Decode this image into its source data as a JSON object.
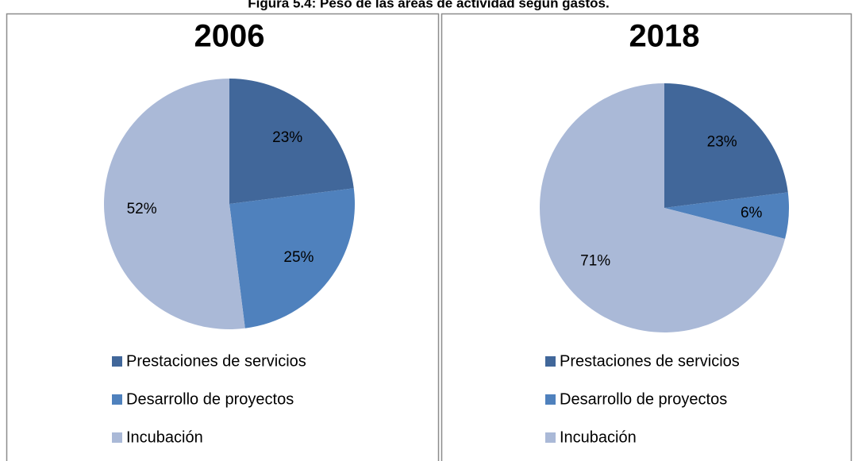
{
  "title": "Figura 5.4: Peso de las áreas de actividad según gastos.",
  "chart_data": [
    {
      "type": "pie",
      "title": "2006",
      "categories": [
        "Prestaciones de servicios",
        "Desarrollo de proyectos",
        "Incubación"
      ],
      "values": [
        23,
        25,
        52
      ],
      "value_labels": [
        "23%",
        "25%",
        "52%"
      ],
      "colors": [
        "#41679a",
        "#4f81bd",
        "#aab9d7"
      ]
    },
    {
      "type": "pie",
      "title": "2018",
      "categories": [
        "Prestaciones de servicios",
        "Desarrollo de proyectos",
        "Incubación"
      ],
      "values": [
        23,
        6,
        71
      ],
      "value_labels": [
        "23%",
        "6%",
        "71%"
      ],
      "colors": [
        "#41679a",
        "#4f81bd",
        "#aab9d7"
      ]
    }
  ]
}
